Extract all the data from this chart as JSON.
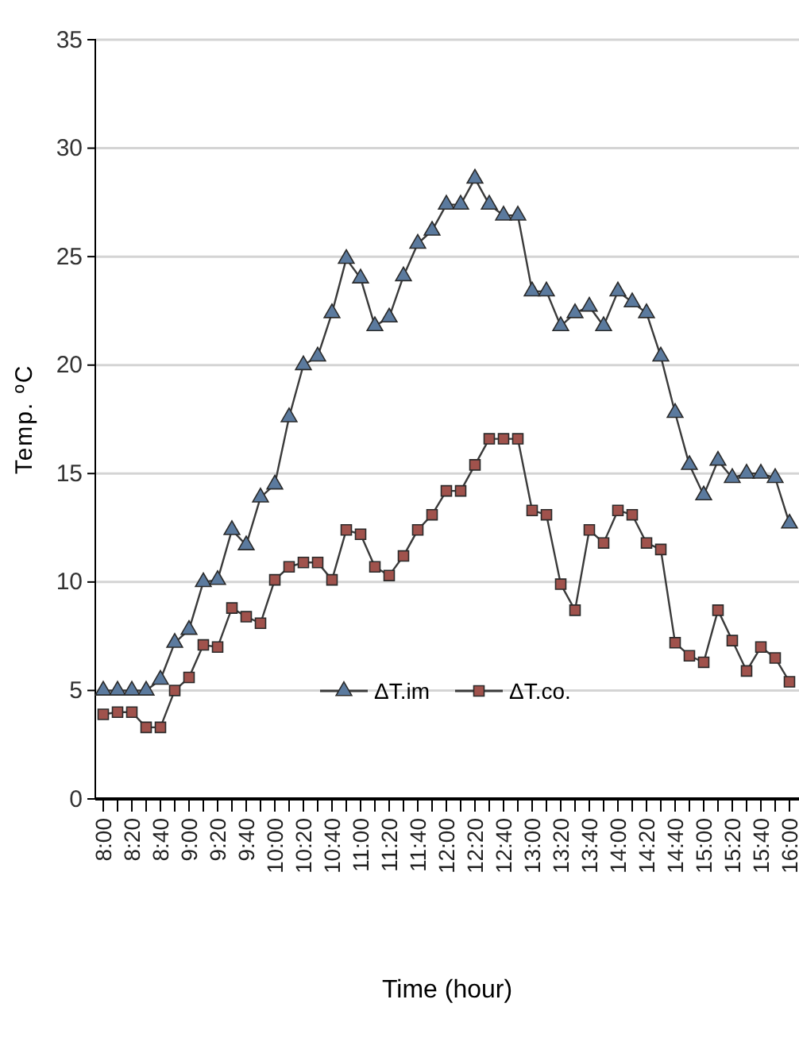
{
  "chart_data": {
    "type": "line",
    "xlabel": "Time (hour)",
    "ylabel": "Temp. ºC",
    "categories": [
      "8:00",
      null,
      "8:20",
      null,
      "8:40",
      null,
      "9:00",
      null,
      "9:20",
      null,
      "9:40",
      null,
      "10:00",
      null,
      "10:20",
      null,
      "10:40",
      null,
      "11:00",
      null,
      "11:20",
      null,
      "11:40",
      null,
      "12:00",
      null,
      "12:20",
      null,
      "12:40",
      null,
      "13:00",
      null,
      "13:20",
      null,
      "13:40",
      null,
      "14:00",
      null,
      "14:20",
      null,
      "14:40",
      null,
      "15:00",
      null,
      "15:20",
      null,
      "15:40",
      null,
      "16:00"
    ],
    "series": [
      {
        "name": "ΔT.im",
        "color": "#5b7a9e",
        "marker": "triangle",
        "values": [
          5.0,
          5.0,
          5.0,
          5.0,
          5.5,
          7.2,
          7.8,
          10.0,
          10.1,
          12.4,
          11.7,
          13.9,
          14.5,
          17.6,
          20.0,
          20.4,
          22.4,
          24.9,
          24.0,
          21.8,
          22.2,
          24.1,
          25.6,
          26.2,
          27.4,
          27.4,
          28.6,
          27.4,
          26.9,
          26.9,
          23.4,
          23.4,
          21.8,
          22.4,
          22.7,
          21.8,
          23.4,
          22.9,
          22.4,
          20.4,
          17.8,
          15.4,
          14.0,
          15.6,
          14.8,
          15.0,
          15.0,
          14.8,
          12.7
        ]
      },
      {
        "name": "ΔT.co.",
        "color": "#a0524c",
        "marker": "square",
        "values": [
          3.9,
          4.0,
          4.0,
          3.3,
          3.3,
          5.0,
          5.6,
          7.1,
          7.0,
          8.8,
          8.4,
          8.1,
          10.1,
          10.7,
          10.9,
          10.9,
          10.1,
          12.4,
          12.2,
          10.7,
          10.3,
          11.2,
          12.4,
          13.1,
          14.2,
          14.2,
          15.4,
          16.6,
          16.6,
          16.6,
          13.3,
          13.1,
          9.9,
          8.7,
          12.4,
          11.8,
          13.3,
          13.1,
          11.8,
          11.5,
          7.2,
          6.6,
          6.3,
          8.7,
          7.3,
          5.9,
          7.0,
          6.5,
          5.4
        ]
      }
    ],
    "ylim": [
      0,
      35
    ],
    "yticks": [
      0,
      5,
      10,
      15,
      20,
      25,
      30,
      35
    ],
    "grid": "y",
    "legend": "bottom"
  }
}
